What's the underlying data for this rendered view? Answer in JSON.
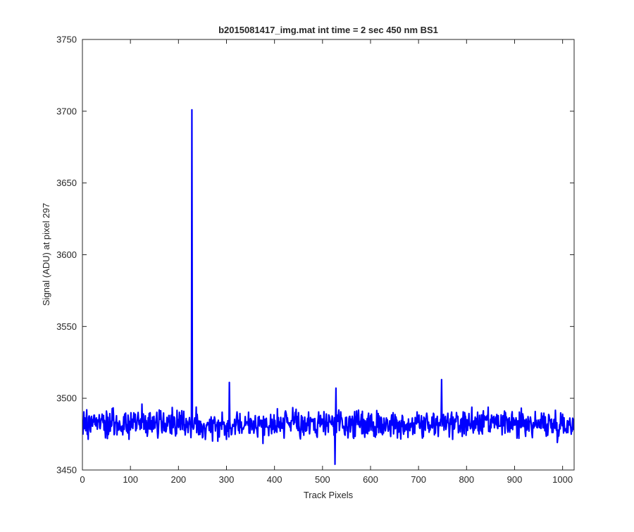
{
  "chart_data": {
    "type": "line",
    "title": "b2015081417_img.mat int time = 2 sec  450 nm BS1",
    "xlabel": "Track Pixels",
    "ylabel": "Signal (ADU) at pixel 297",
    "xlim": [
      0,
      1024
    ],
    "ylim": [
      3450,
      3750
    ],
    "xticks": [
      "0",
      "100",
      "200",
      "300",
      "400",
      "500",
      "600",
      "700",
      "800",
      "900",
      "1000"
    ],
    "yticks": [
      "3450",
      "3500",
      "3550",
      "3600",
      "3650",
      "3700",
      "3750"
    ],
    "grid": false,
    "line_color": "#0000ff",
    "series": [
      {
        "noise_baseline": 3482,
        "noise_range": [
          3453,
          3513
        ],
        "spike": {
          "x": 228,
          "y": 3701
        },
        "notable_points": [
          {
            "x": 306,
            "y": 3511
          },
          {
            "x": 526,
            "y": 3454
          },
          {
            "x": 528,
            "y": 3507
          },
          {
            "x": 748,
            "y": 3513
          }
        ]
      }
    ]
  }
}
